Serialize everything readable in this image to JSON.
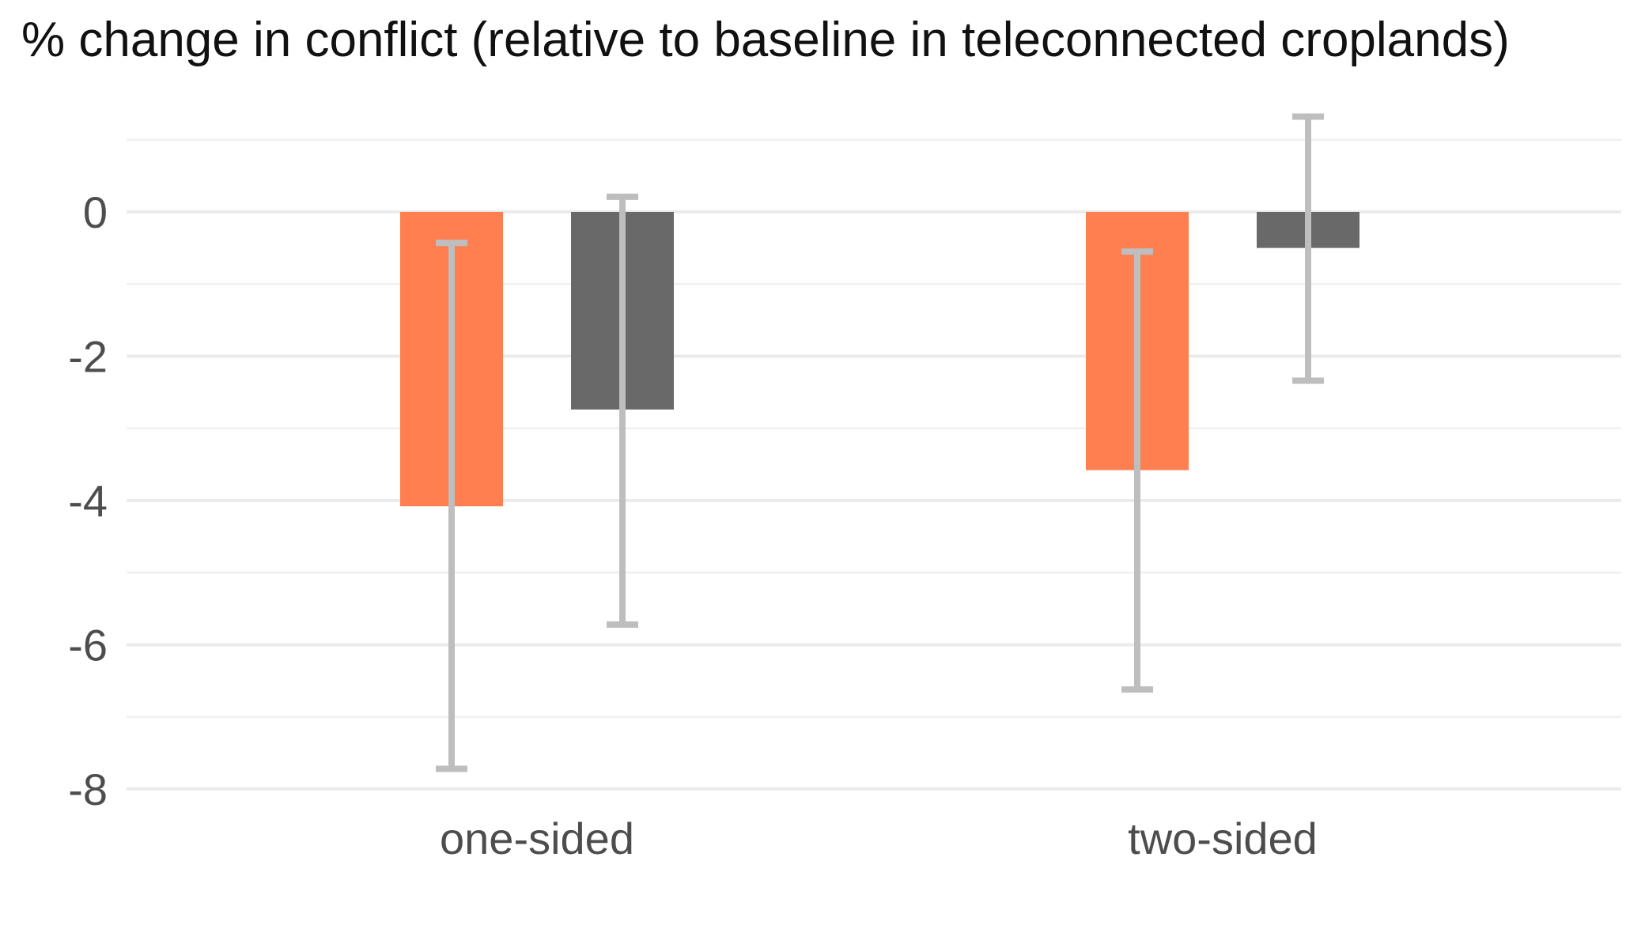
{
  "chart_data": {
    "type": "bar",
    "title": "% change in conflict (relative to baseline in teleconnected croplands)",
    "xlabel": "",
    "ylabel": "",
    "categories": [
      "one-sided",
      "two-sided"
    ],
    "series": [
      {
        "color": "#ff7f50",
        "values": [
          -4.08,
          -3.58
        ],
        "error_low": [
          -7.72,
          -6.62
        ],
        "error_high": [
          -0.43,
          -0.55
        ]
      },
      {
        "color": "#696969",
        "values": [
          -2.74,
          -0.5
        ],
        "error_low": [
          -5.72,
          -2.34
        ],
        "error_high": [
          0.21,
          1.32
        ]
      }
    ],
    "ylim": [
      -8,
      1
    ],
    "yticks": [
      0,
      -2,
      -4,
      -6,
      -8
    ],
    "grid": true,
    "legend": "none",
    "error_bar_color": "#bebebe"
  }
}
